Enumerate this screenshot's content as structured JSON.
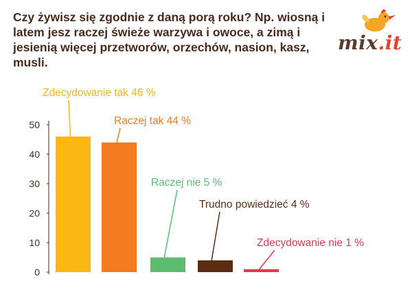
{
  "question": "Czy żywisz się zgodnie z daną porą roku? Np. wiosną i latem jesz raczej świeże warzywa i owoce, a zimą i jesienią więcej przetworów, orzechów, nasion, kasz, musli.",
  "logo": {
    "mix": "mix",
    "dot": ".",
    "it": "it"
  },
  "chart_data": {
    "type": "bar",
    "title": "Czy żywisz się zgodnie z daną porą roku? Np. wiosną i latem jesz raczej świeże warzywa i owoce, a zimą i jesienią więcej przetworów, orzechów, nasion, kasz, musli.",
    "categories": [
      "Zdecydowanie tak",
      "Raczej tak",
      "Raczej nie",
      "Trudno powiedzieć",
      "Zdecydowanie nie"
    ],
    "values": [
      46,
      44,
      5,
      4,
      1
    ],
    "labels": [
      "Zdecydowanie tak 46 %",
      "Raczej tak 44 %",
      "Raczej nie 5 %",
      "Trudno powiedzieć 4 %",
      "Zdecydowanie nie 1 %"
    ],
    "colors": [
      "#fbb714",
      "#f47b20",
      "#5cbb6f",
      "#5a2d12",
      "#e8364f"
    ],
    "yticks": [
      0,
      10,
      20,
      30,
      40,
      50
    ],
    "ylim": [
      0,
      50
    ],
    "xlabel": "",
    "ylabel": "",
    "grid": false,
    "axis_color": "#4a2a1c"
  }
}
